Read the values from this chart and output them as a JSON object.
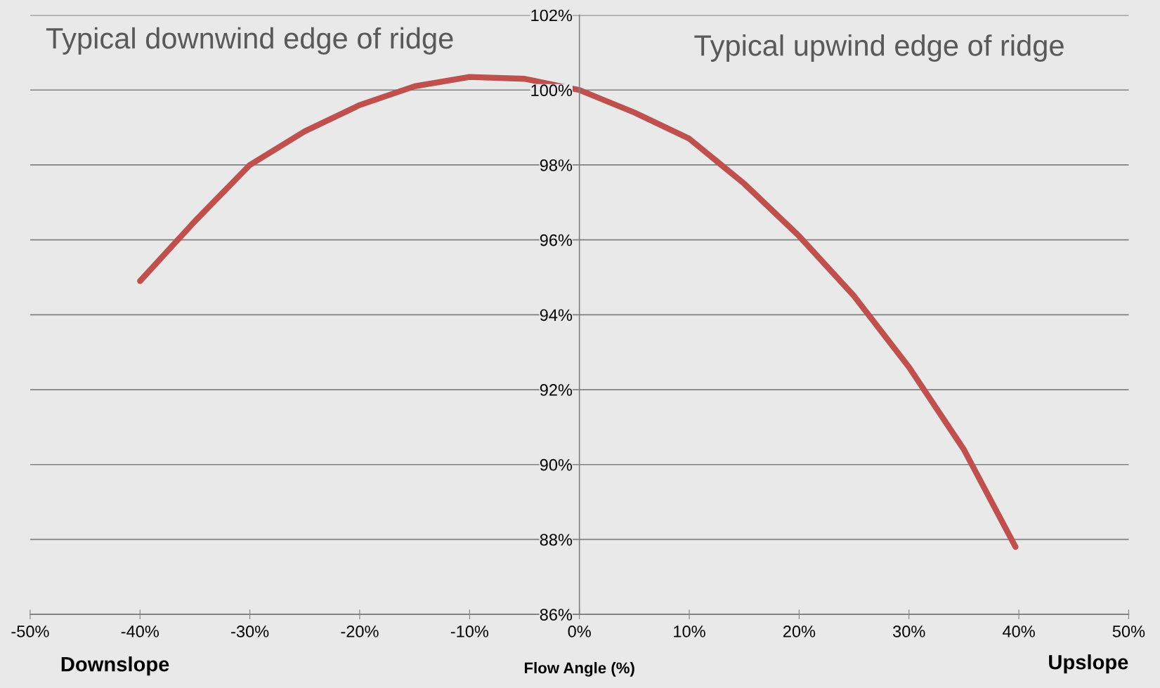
{
  "chart_data": {
    "type": "line",
    "xlabel": "Flow Angle (%)",
    "annotations": [
      "Typical downwind edge of ridge",
      "Typical upwind edge of ridge",
      "Downslope",
      "Upslope"
    ],
    "x": [
      -40,
      -35,
      -30,
      -25,
      -20,
      -15,
      -10,
      -5,
      0,
      5,
      10,
      15,
      20,
      25,
      30,
      35,
      39.7
    ],
    "series": [
      {
        "color": "#c0504d",
        "values": [
          94.9,
          96.5,
          98.0,
          98.9,
          99.6,
          100.1,
          100.35,
          100.3,
          100.0,
          99.4,
          98.7,
          97.5,
          96.1,
          94.5,
          92.6,
          90.4,
          87.8
        ]
      }
    ],
    "xlim": [
      -50,
      50
    ],
    "xticks": [
      {
        "value": -50,
        "label": "-50%"
      },
      {
        "value": -40,
        "label": "-40%"
      },
      {
        "value": -30,
        "label": "-30%"
      },
      {
        "value": -20,
        "label": "-20%"
      },
      {
        "value": -10,
        "label": "-10%"
      },
      {
        "value": 0,
        "label": "0%"
      },
      {
        "value": 10,
        "label": "10%"
      },
      {
        "value": 20,
        "label": "20%"
      },
      {
        "value": 30,
        "label": "30%"
      },
      {
        "value": 40,
        "label": "40%"
      },
      {
        "value": 50,
        "label": "50%"
      }
    ],
    "ylim": [
      86,
      102
    ],
    "yticks": [
      {
        "value": 86,
        "label": "86%"
      },
      {
        "value": 88,
        "label": "88%"
      },
      {
        "value": 90,
        "label": "90%"
      },
      {
        "value": 92,
        "label": "92%"
      },
      {
        "value": 94,
        "label": "94%"
      },
      {
        "value": 96,
        "label": "96%"
      },
      {
        "value": 98,
        "label": "98%"
      },
      {
        "value": 100,
        "label": "100%"
      },
      {
        "value": 102,
        "label": "102%"
      }
    ],
    "grid": "y",
    "marker": "none",
    "line_style": "solid",
    "legend": false
  }
}
